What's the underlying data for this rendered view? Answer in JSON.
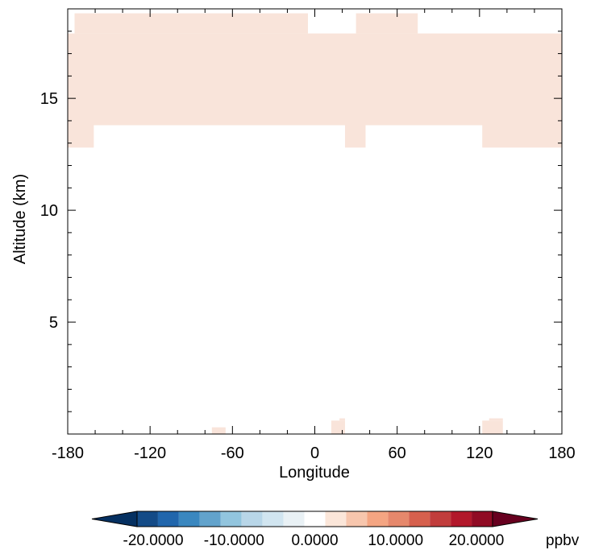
{
  "chart_data": {
    "type": "heatmap",
    "title": "",
    "xlabel": "Longitude",
    "ylabel": "Altitude (km)",
    "xlim": [
      -180,
      180
    ],
    "ylim": [
      0,
      19
    ],
    "grid": false,
    "xticks": [
      -180,
      -120,
      -60,
      0,
      60,
      120,
      180
    ],
    "xtick_labels": [
      "-180",
      "-120",
      "-60",
      "0",
      "60",
      "120",
      "180"
    ],
    "yticks": [
      5,
      10,
      15
    ],
    "ytick_labels": [
      "5",
      "10",
      "15"
    ],
    "fill_color": "#f9e4da",
    "cells": [
      {
        "x0": -175,
        "x1": -5,
        "y0": 17.9,
        "y1": 18.8
      },
      {
        "x0": 30,
        "x1": 75,
        "y0": 17.9,
        "y1": 18.8
      },
      {
        "x0": -180,
        "x1": 180,
        "y0": 13.8,
        "y1": 17.9
      },
      {
        "x0": -180,
        "x1": -161,
        "y0": 12.8,
        "y1": 13.8
      },
      {
        "x0": 22,
        "x1": 37,
        "y0": 12.8,
        "y1": 13.8
      },
      {
        "x0": 122,
        "x1": 180,
        "y0": 12.8,
        "y1": 13.8
      },
      {
        "x0": -75,
        "x1": -65,
        "y0": 0.0,
        "y1": 0.3
      },
      {
        "x0": 12,
        "x1": 22,
        "y0": 0.0,
        "y1": 0.6
      },
      {
        "x0": 18,
        "x1": 22,
        "y0": 0.6,
        "y1": 0.7
      },
      {
        "x0": 122,
        "x1": 137,
        "y0": 0.0,
        "y1": 0.6
      },
      {
        "x0": 127,
        "x1": 137,
        "y0": 0.6,
        "y1": 0.7
      }
    ],
    "colorbar": {
      "min": -24,
      "max": 24,
      "colors": [
        "#053061",
        "#144b87",
        "#2166ac",
        "#3a87bf",
        "#62a3cc",
        "#92c5de",
        "#b8d6e8",
        "#d1e5f0",
        "#e9f1f5",
        "#ffffff",
        "#fbe6d9",
        "#f7c6ad",
        "#f4a582",
        "#e6886c",
        "#d6604d",
        "#c13d3c",
        "#b2182b",
        "#900b24",
        "#67001f"
      ],
      "ticks": [
        -20,
        -10,
        0,
        10,
        20
      ],
      "tick_labels": [
        "-20.0000",
        "-10.0000",
        "0.0000",
        "10.0000",
        "20.0000"
      ],
      "units": "ppbv"
    }
  }
}
